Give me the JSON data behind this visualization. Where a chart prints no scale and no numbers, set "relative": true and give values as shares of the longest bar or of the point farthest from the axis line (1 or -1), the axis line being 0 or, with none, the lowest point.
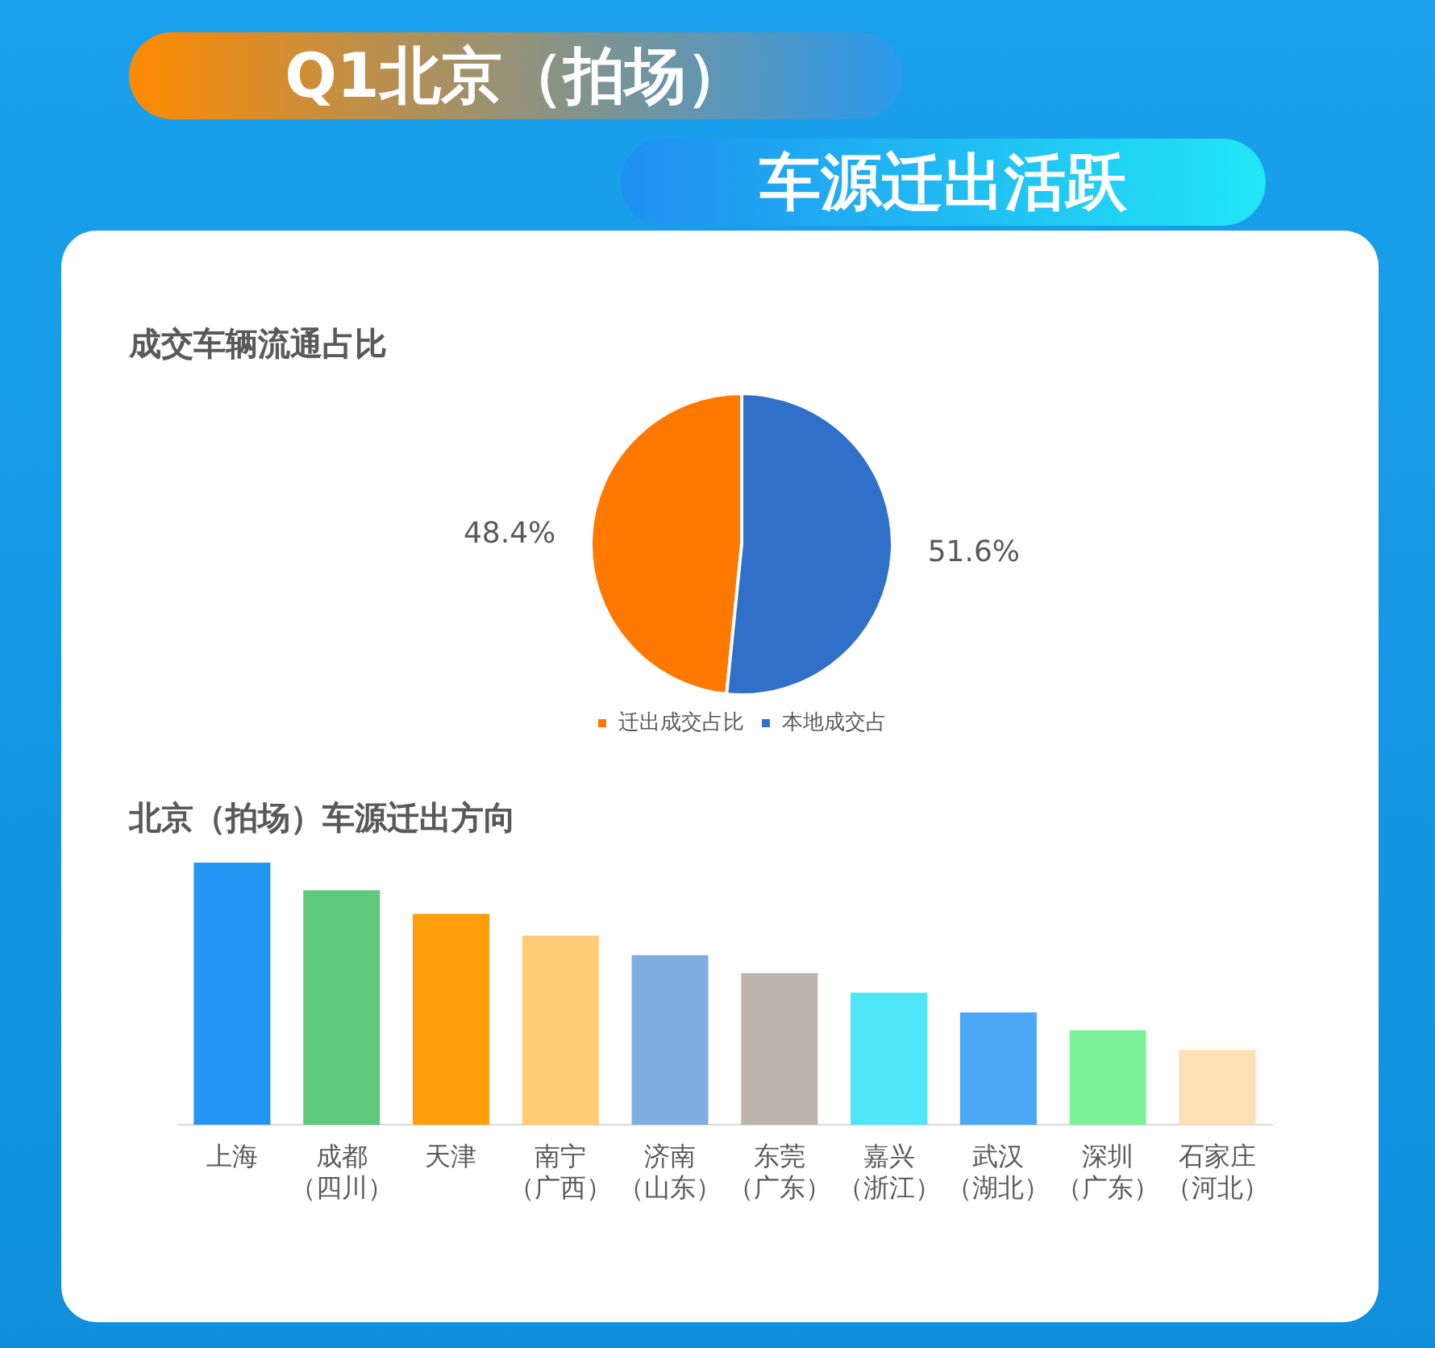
{
  "chart_data": [
    {
      "type": "pie",
      "title": "Q1北京（拍场）车源迁出活跃",
      "subtitle": "成交车辆流通占比",
      "categories": [
        "迁出成交占比",
        "本地成交占"
      ],
      "values": [
        48.4,
        51.6
      ],
      "colors": [
        "#ff7800",
        "#3070c8"
      ],
      "value_labels": [
        "48.4%",
        "51.6%"
      ],
      "legend": "bottom"
    },
    {
      "type": "bar",
      "title": "北京（拍场）车源迁出方向",
      "relative": true,
      "categories": [
        "上海",
        "成都（四川）",
        "天津",
        "南宁（广西）",
        "济南（山东）",
        "东莞（广东）",
        "嘉兴（浙江）",
        "武汉（湖北）",
        "深圳（广东）",
        "石家庄（河北）"
      ],
      "values": [
        1,
        0.895,
        0.805,
        0.722,
        0.647,
        0.579,
        0.504,
        0.429,
        0.361,
        0.286
      ],
      "colors": [
        "#2196f3",
        "#5ec97a",
        "#ff9e0c",
        "#ffcd75",
        "#7eaedf",
        "#bdb5ab",
        "#4ee6f7",
        "#4aa8f5",
        "#7ef29b",
        "#fde0b5"
      ]
    }
  ]
}
